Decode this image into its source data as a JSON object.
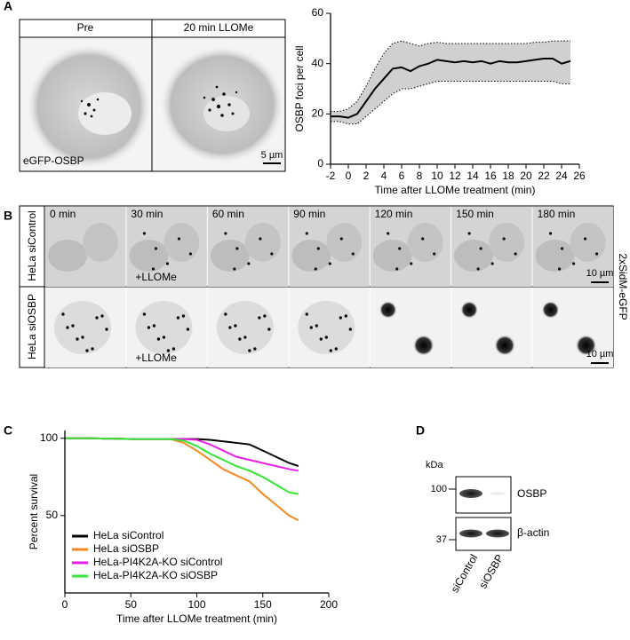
{
  "panel_letters": [
    "A",
    "B",
    "C",
    "D"
  ],
  "panel_a": {
    "headers": [
      "Pre",
      "20 min LLOMe"
    ],
    "stain": "eGFP-OSBP",
    "scale": "5 µm"
  },
  "panel_b": {
    "times": [
      "0 min",
      "30 min",
      "60 min",
      "90 min",
      "120 min",
      "150 min",
      "180 min"
    ],
    "rows": [
      "HeLa siControl",
      "HeLa siOSBP"
    ],
    "treatment": [
      "+LLOMe",
      "+LLOMe"
    ],
    "scales": [
      "10 µm",
      "10 µm"
    ],
    "marker": "2xSidM-eGFP"
  },
  "panel_d": {
    "unit": "kDa",
    "markers": [
      "100",
      "37"
    ],
    "proteins": [
      "OSBP",
      "β-actin"
    ],
    "lanes": [
      "siControl",
      "siOSBP"
    ]
  },
  "chart_data": [
    {
      "type": "line",
      "x_label": "Time after LLOMe treatment (min)",
      "y_label": "OSBP foci per cell",
      "x": [
        -2,
        -1,
        0,
        1,
        2,
        3,
        4,
        5,
        6,
        7,
        8,
        9,
        10,
        11,
        12,
        13,
        14,
        15,
        16,
        17,
        18,
        19,
        20,
        21,
        22,
        23,
        24,
        25
      ],
      "series": [
        {
          "color": "#000000",
          "style": "solid",
          "values": [
            19,
            19,
            18.5,
            20,
            25,
            30,
            34,
            38,
            38.5,
            37,
            39,
            40,
            41.5,
            41,
            40.5,
            41,
            40.5,
            41,
            40,
            41,
            40.5,
            40.5,
            41,
            41.5,
            42,
            42,
            40,
            41
          ]
        },
        {
          "color": "#000000",
          "style": "dotted",
          "values": [
            21,
            21,
            22,
            25,
            31,
            38,
            44,
            48,
            49,
            48,
            47,
            48,
            48.5,
            48,
            48,
            48,
            48,
            48,
            48,
            48,
            48,
            48,
            48,
            48.5,
            48.5,
            49,
            49,
            49
          ]
        },
        {
          "color": "#000000",
          "style": "dotted",
          "values": [
            17,
            17,
            16,
            16,
            19,
            22,
            25,
            28,
            30,
            30,
            31,
            32,
            33,
            33,
            33,
            33,
            33,
            33,
            33,
            33,
            33,
            33,
            33,
            33,
            33,
            33,
            32,
            32
          ]
        }
      ],
      "shaded_band": true,
      "xlim": [
        -2,
        26
      ],
      "xticks": [
        -2,
        0,
        2,
        4,
        6,
        8,
        10,
        12,
        14,
        16,
        18,
        20,
        22,
        24,
        26
      ],
      "ylim": [
        0,
        60
      ],
      "yticks": [
        0,
        20,
        40,
        60
      ]
    },
    {
      "type": "line",
      "x_label": "Time after LLOMe treatment (min)",
      "y_label": "Percent survival",
      "x": [
        0,
        10,
        20,
        30,
        40,
        50,
        60,
        70,
        80,
        90,
        100,
        110,
        120,
        130,
        140,
        150,
        160,
        170,
        177
      ],
      "series": [
        {
          "name": "HeLa siControl",
          "color": "#000000",
          "style": "solid",
          "values": [
            100,
            100,
            100,
            99.8,
            99.7,
            99.5,
            99.5,
            99.5,
            99.5,
            99.5,
            99.5,
            99,
            98,
            97,
            96,
            92,
            88,
            84,
            82
          ]
        },
        {
          "name": "HeLa siOSBP",
          "color": "#f5891f",
          "style": "solid",
          "values": [
            100,
            100,
            100,
            99.8,
            99.7,
            99.5,
            99.5,
            99.5,
            99.5,
            97,
            92,
            86,
            80,
            76,
            72,
            64,
            57,
            50,
            47
          ]
        },
        {
          "name": "HeLa-PI4K2A-KO siControl",
          "color": "#e81ee8",
          "style": "solid",
          "values": [
            100,
            100,
            100,
            99.8,
            99.7,
            99.5,
            99.5,
            99.5,
            99.5,
            99.5,
            99,
            96,
            92,
            88,
            86,
            84,
            82,
            80,
            79
          ]
        },
        {
          "name": "HeLa-PI4K2A-KO siOSBP",
          "color": "#33e633",
          "style": "solid",
          "values": [
            100,
            100,
            100,
            99.8,
            99.7,
            99.5,
            99.5,
            99.5,
            99.5,
            98.5,
            95,
            90,
            86,
            82,
            79,
            75,
            70,
            65,
            64
          ]
        }
      ],
      "legend": "lower left",
      "xlim": [
        0,
        200
      ],
      "xticks": [
        0,
        50,
        100,
        150,
        200
      ],
      "ylim": [
        0,
        105
      ],
      "yticks": [
        50,
        100
      ]
    }
  ]
}
